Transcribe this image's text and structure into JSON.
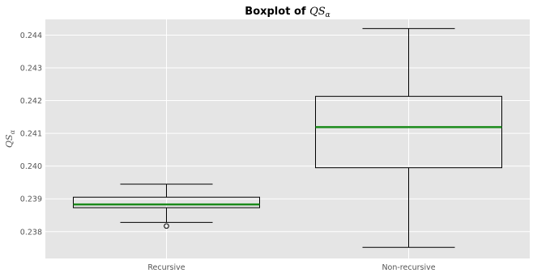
{
  "chart_data": {
    "type": "boxplot",
    "title": {
      "prefix": "Boxplot of ",
      "symbol": "QS",
      "subscript": "α"
    },
    "ylabel": {
      "symbol": "QS",
      "subscript": "α"
    },
    "xlabel": "",
    "ylim": [
      0.23718,
      0.24448
    ],
    "yticks": [
      "0.238",
      "0.239",
      "0.240",
      "0.241",
      "0.242",
      "0.243",
      "0.244"
    ],
    "yticks_values": [
      0.238,
      0.239,
      0.24,
      0.241,
      0.242,
      0.243,
      0.244
    ],
    "categories": [
      "Recursive",
      "Non-recursive"
    ],
    "boxes": [
      {
        "category": "Recursive",
        "whisker_low": 0.23828,
        "q1": 0.23873,
        "median": 0.23883,
        "q3": 0.23905,
        "whisker_high": 0.23945,
        "outliers": [
          0.23817
        ]
      },
      {
        "category": "Non-recursive",
        "whisker_low": 0.23752,
        "q1": 0.23995,
        "median": 0.24119,
        "q3": 0.24213,
        "whisker_high": 0.2442,
        "outliers": []
      }
    ],
    "grid": true,
    "colors": {
      "background": "#e5e5e5",
      "grid": "#ffffff",
      "box": "#000000",
      "median": "#1a8a1a"
    }
  }
}
